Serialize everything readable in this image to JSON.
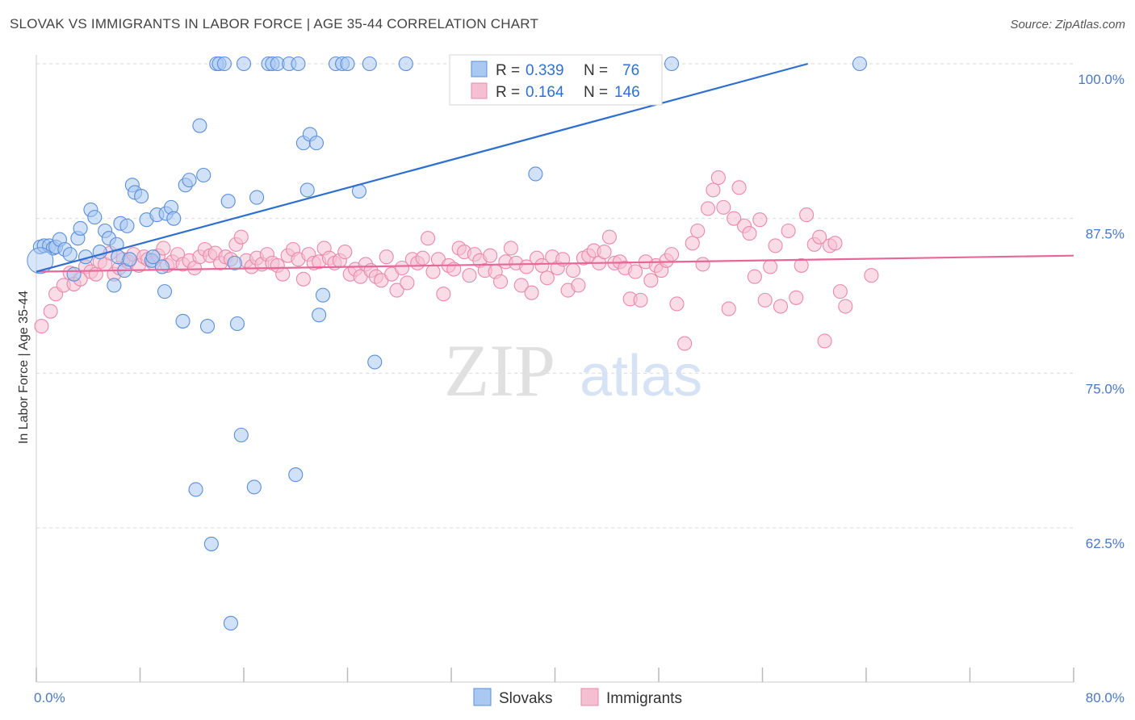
{
  "title": "SLOVAK VS IMMIGRANTS IN LABOR FORCE | AGE 35-44 CORRELATION CHART",
  "source": "Source: ZipAtlas.com",
  "watermark": {
    "zip": "ZIP",
    "atlas": "atlas"
  },
  "colors": {
    "slovak_fill": "#a9c8f2",
    "slovak_stroke": "#5b8fd8",
    "slovak_line": "#2d6fd0",
    "imm_fill": "#f6bfd1",
    "imm_stroke": "#e98aa8",
    "imm_line": "#e8679a",
    "grid": "#d9d9d9",
    "tick_label": "#4a78c9"
  },
  "legend": {
    "rows": [
      {
        "r_label": "R =",
        "r_value": "0.339",
        "n_label": "N =",
        "n_value": "76"
      },
      {
        "r_label": "R =",
        "r_value": "0.164",
        "n_label": "N =",
        "n_value": "146"
      }
    ]
  },
  "chart_data": {
    "type": "scatter",
    "ylabel": "In Labor Force | Age 35-44",
    "xlim": [
      0,
      80
    ],
    "ylim": [
      51,
      101
    ],
    "y_ticks": [
      {
        "value": 100,
        "label": "100.0%"
      },
      {
        "value": 87.5,
        "label": "87.5%"
      },
      {
        "value": 75,
        "label": "75.0%"
      },
      {
        "value": 62.5,
        "label": "62.5%"
      }
    ],
    "x_tick_labels": {
      "min": "0.0%",
      "max": "80.0%"
    },
    "x_minor_ticks": [
      0,
      8,
      16,
      24,
      32,
      40,
      48,
      56,
      64,
      72,
      80
    ],
    "series": [
      {
        "name": "Slovaks",
        "trend": {
          "x0": 0,
          "y0": 83.2,
          "x1": 59.5,
          "y1": 100
        },
        "points": [
          [
            0.3,
            85.2
          ],
          [
            0.6,
            85.3
          ],
          [
            1.0,
            85.3
          ],
          [
            1.3,
            85.1
          ],
          [
            1.5,
            85.2
          ],
          [
            1.8,
            85.8
          ],
          [
            2.2,
            85.0
          ],
          [
            2.6,
            84.6
          ],
          [
            2.9,
            83.0
          ],
          [
            3.2,
            85.9
          ],
          [
            3.4,
            86.7
          ],
          [
            3.8,
            84.4
          ],
          [
            4.2,
            88.2
          ],
          [
            4.5,
            87.6
          ],
          [
            4.9,
            84.8
          ],
          [
            5.3,
            86.5
          ],
          [
            5.6,
            85.9
          ],
          [
            6.0,
            82.1
          ],
          [
            6.2,
            85.4
          ],
          [
            6.3,
            84.4
          ],
          [
            6.5,
            87.1
          ],
          [
            6.8,
            83.3
          ],
          [
            7.0,
            86.9
          ],
          [
            7.2,
            84.2
          ],
          [
            7.4,
            90.2
          ],
          [
            7.6,
            89.6
          ],
          [
            8.1,
            89.3
          ],
          [
            8.5,
            87.4
          ],
          [
            8.9,
            84.1
          ],
          [
            9.0,
            84.4
          ],
          [
            9.3,
            87.8
          ],
          [
            9.7,
            83.6
          ],
          [
            9.9,
            81.6
          ],
          [
            10.0,
            87.9
          ],
          [
            10.4,
            88.4
          ],
          [
            10.6,
            87.5
          ],
          [
            11.3,
            79.2
          ],
          [
            11.5,
            90.2
          ],
          [
            11.8,
            90.6
          ],
          [
            12.3,
            65.6
          ],
          [
            12.6,
            95.0
          ],
          [
            12.9,
            91.0
          ],
          [
            13.2,
            78.8
          ],
          [
            13.5,
            61.2
          ],
          [
            13.9,
            100
          ],
          [
            14.1,
            100
          ],
          [
            14.5,
            100
          ],
          [
            14.8,
            88.9
          ],
          [
            15.0,
            54.8
          ],
          [
            15.3,
            83.9
          ],
          [
            15.5,
            79.0
          ],
          [
            15.8,
            70.0
          ],
          [
            16.0,
            100
          ],
          [
            16.8,
            65.8
          ],
          [
            17.0,
            89.2
          ],
          [
            17.9,
            100
          ],
          [
            18.2,
            100
          ],
          [
            18.6,
            100
          ],
          [
            19.5,
            100
          ],
          [
            20.0,
            66.8
          ],
          [
            20.2,
            100
          ],
          [
            20.6,
            93.6
          ],
          [
            20.9,
            89.8
          ],
          [
            21.1,
            94.3
          ],
          [
            21.6,
            93.6
          ],
          [
            21.8,
            79.7
          ],
          [
            22.1,
            81.3
          ],
          [
            23.1,
            100
          ],
          [
            23.6,
            100
          ],
          [
            24.0,
            100
          ],
          [
            24.9,
            89.7
          ],
          [
            25.7,
            100
          ],
          [
            26.1,
            75.9
          ],
          [
            28.5,
            100
          ],
          [
            38.5,
            91.1
          ],
          [
            43.0,
            100
          ],
          [
            49.0,
            100
          ],
          [
            63.5,
            100
          ]
        ]
      },
      {
        "name": "Immigrants",
        "trend": {
          "x0": 0,
          "y0": 83.2,
          "x1": 80,
          "y1": 84.5
        },
        "points": [
          [
            0.4,
            78.8
          ],
          [
            1.1,
            80.0
          ],
          [
            1.5,
            81.4
          ],
          [
            2.1,
            82.1
          ],
          [
            2.6,
            83.1
          ],
          [
            2.9,
            82.2
          ],
          [
            3.4,
            82.6
          ],
          [
            3.8,
            83.6
          ],
          [
            4.2,
            83.2
          ],
          [
            4.6,
            83.0
          ],
          [
            4.9,
            84.0
          ],
          [
            5.3,
            83.8
          ],
          [
            5.7,
            84.7
          ],
          [
            6.0,
            83.0
          ],
          [
            6.4,
            83.5
          ],
          [
            6.7,
            84.2
          ],
          [
            7.1,
            84.0
          ],
          [
            7.5,
            84.6
          ],
          [
            7.9,
            83.7
          ],
          [
            8.3,
            84.4
          ],
          [
            8.6,
            84.2
          ],
          [
            9.0,
            83.9
          ],
          [
            9.4,
            84.5
          ],
          [
            9.8,
            85.1
          ],
          [
            10.1,
            83.7
          ],
          [
            10.5,
            84.0
          ],
          [
            10.9,
            84.6
          ],
          [
            11.3,
            83.8
          ],
          [
            11.8,
            84.1
          ],
          [
            12.2,
            83.5
          ],
          [
            12.6,
            84.4
          ],
          [
            13.0,
            85.0
          ],
          [
            13.4,
            84.5
          ],
          [
            13.8,
            84.7
          ],
          [
            14.2,
            83.9
          ],
          [
            14.6,
            84.4
          ],
          [
            15.0,
            84.2
          ],
          [
            15.4,
            85.4
          ],
          [
            15.8,
            86.0
          ],
          [
            16.2,
            84.1
          ],
          [
            16.6,
            83.6
          ],
          [
            17.0,
            84.3
          ],
          [
            17.4,
            83.8
          ],
          [
            17.8,
            84.6
          ],
          [
            18.2,
            83.9
          ],
          [
            18.6,
            83.7
          ],
          [
            19.0,
            83.0
          ],
          [
            19.4,
            84.5
          ],
          [
            19.8,
            85.0
          ],
          [
            20.2,
            84.2
          ],
          [
            20.6,
            82.6
          ],
          [
            21.0,
            84.6
          ],
          [
            21.4,
            83.9
          ],
          [
            21.8,
            84.0
          ],
          [
            22.2,
            85.1
          ],
          [
            22.6,
            84.3
          ],
          [
            23.0,
            83.9
          ],
          [
            23.4,
            84.1
          ],
          [
            23.8,
            84.8
          ],
          [
            24.2,
            83.0
          ],
          [
            24.6,
            83.4
          ],
          [
            25.0,
            82.8
          ],
          [
            25.4,
            83.8
          ],
          [
            25.8,
            83.3
          ],
          [
            26.2,
            82.8
          ],
          [
            26.6,
            82.5
          ],
          [
            27.0,
            84.4
          ],
          [
            27.4,
            83.0
          ],
          [
            27.8,
            81.7
          ],
          [
            28.2,
            83.5
          ],
          [
            28.6,
            82.3
          ],
          [
            29.0,
            84.2
          ],
          [
            29.4,
            83.9
          ],
          [
            29.8,
            84.3
          ],
          [
            30.2,
            85.9
          ],
          [
            30.6,
            83.2
          ],
          [
            31.0,
            84.2
          ],
          [
            31.4,
            81.4
          ],
          [
            31.8,
            83.7
          ],
          [
            32.2,
            83.4
          ],
          [
            32.6,
            85.1
          ],
          [
            33.0,
            84.8
          ],
          [
            33.4,
            82.9
          ],
          [
            33.8,
            84.6
          ],
          [
            34.2,
            84.1
          ],
          [
            34.6,
            83.3
          ],
          [
            35.0,
            84.5
          ],
          [
            35.4,
            83.2
          ],
          [
            35.8,
            82.4
          ],
          [
            36.2,
            84.0
          ],
          [
            36.6,
            85.1
          ],
          [
            37.0,
            83.9
          ],
          [
            37.4,
            82.1
          ],
          [
            37.8,
            83.6
          ],
          [
            38.2,
            81.5
          ],
          [
            38.6,
            84.3
          ],
          [
            39.0,
            83.7
          ],
          [
            39.4,
            82.7
          ],
          [
            39.8,
            84.4
          ],
          [
            40.2,
            83.5
          ],
          [
            40.6,
            84.2
          ],
          [
            41.0,
            81.7
          ],
          [
            41.4,
            83.3
          ],
          [
            41.8,
            82.1
          ],
          [
            42.2,
            84.3
          ],
          [
            42.6,
            84.5
          ],
          [
            43.0,
            84.9
          ],
          [
            43.4,
            83.9
          ],
          [
            43.8,
            84.8
          ],
          [
            44.2,
            86.0
          ],
          [
            44.6,
            83.9
          ],
          [
            45.0,
            84.0
          ],
          [
            45.4,
            83.5
          ],
          [
            45.8,
            81.0
          ],
          [
            46.2,
            83.2
          ],
          [
            46.6,
            80.9
          ],
          [
            47.0,
            84.0
          ],
          [
            47.4,
            82.5
          ],
          [
            47.8,
            83.7
          ],
          [
            48.2,
            83.3
          ],
          [
            48.6,
            84.1
          ],
          [
            49.0,
            84.6
          ],
          [
            49.4,
            80.6
          ],
          [
            50.0,
            77.4
          ],
          [
            50.6,
            85.5
          ],
          [
            51.0,
            86.5
          ],
          [
            51.4,
            83.8
          ],
          [
            51.8,
            88.3
          ],
          [
            52.2,
            89.8
          ],
          [
            52.6,
            90.8
          ],
          [
            53.0,
            88.4
          ],
          [
            53.4,
            80.2
          ],
          [
            53.8,
            87.5
          ],
          [
            54.2,
            90.0
          ],
          [
            54.6,
            86.9
          ],
          [
            55.0,
            86.3
          ],
          [
            55.4,
            82.8
          ],
          [
            55.8,
            87.4
          ],
          [
            56.2,
            80.9
          ],
          [
            56.6,
            83.6
          ],
          [
            57.0,
            85.3
          ],
          [
            57.4,
            80.4
          ],
          [
            58.0,
            86.5
          ],
          [
            58.6,
            81.1
          ],
          [
            59.0,
            83.7
          ],
          [
            59.4,
            87.8
          ],
          [
            60.0,
            85.4
          ],
          [
            60.4,
            86.0
          ],
          [
            60.8,
            77.6
          ],
          [
            61.2,
            85.3
          ],
          [
            61.6,
            85.5
          ],
          [
            62.0,
            81.6
          ],
          [
            62.4,
            80.4
          ],
          [
            64.4,
            82.9
          ]
        ]
      }
    ]
  },
  "bottom_legend": {
    "slovaks": "Slovaks",
    "immigrants": "Immigrants"
  }
}
